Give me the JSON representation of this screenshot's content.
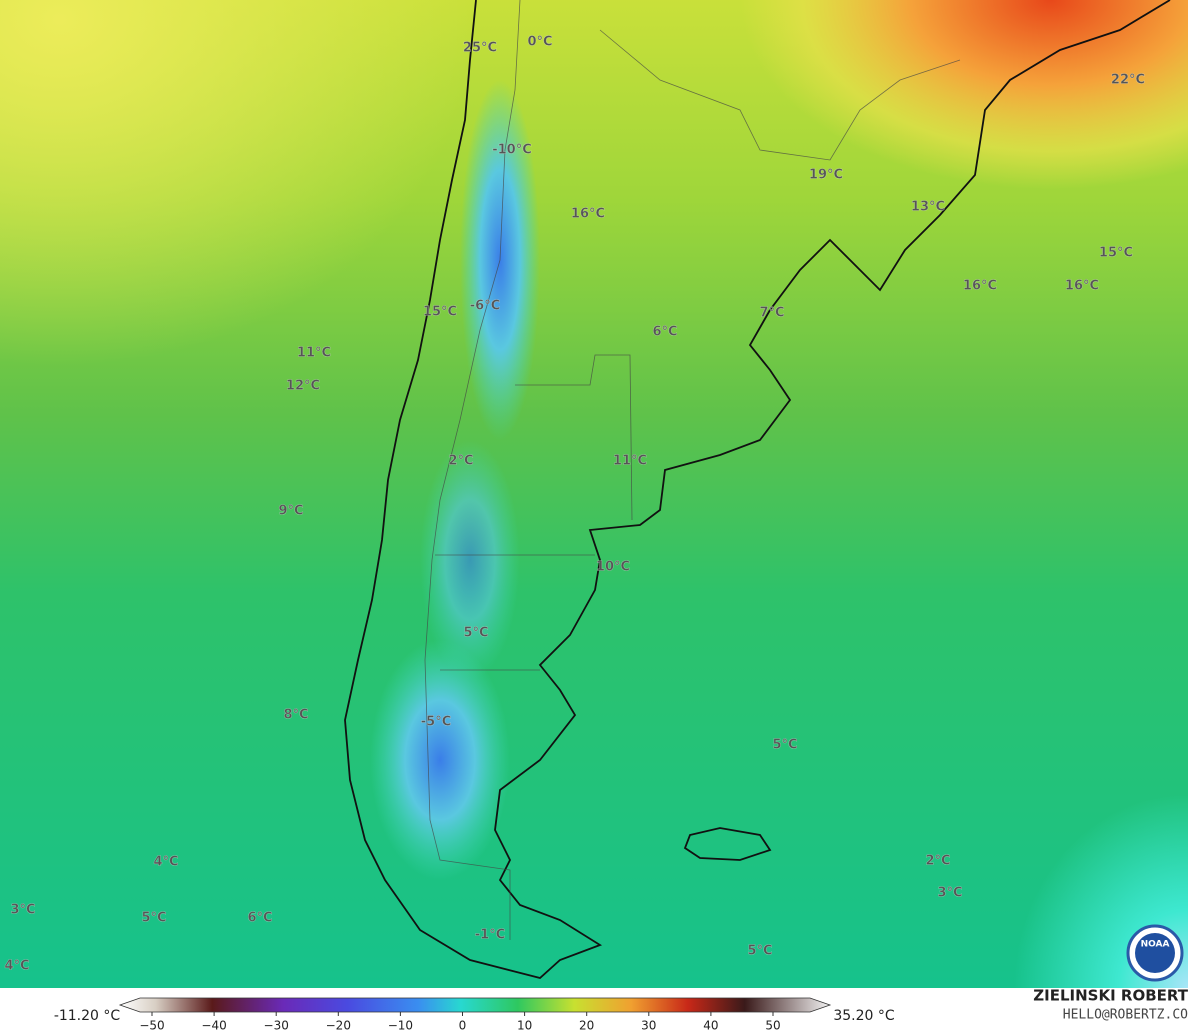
{
  "map": {
    "labels": [
      "25°C",
      "0°C",
      "-10°C",
      "16°C",
      "19°C",
      "22°C",
      "13°C",
      "15°C",
      "16°C",
      "16°C",
      "7°C",
      "6°C",
      "15°C",
      "-6°C",
      "11°C",
      "12°C",
      "2°C",
      "11°C",
      "9°C",
      "10°C",
      "5°C",
      "8°C",
      "-5°C",
      "5°C",
      "4°C",
      "2°C",
      "3°C",
      "3°C",
      "5°C",
      "6°C",
      "-1°C",
      "5°C",
      "4°C"
    ]
  },
  "colorbar": {
    "min_label": "-11.20 °C",
    "max_label": "35.20 °C",
    "ticks": [
      {
        "value": -50,
        "label": "−50"
      },
      {
        "value": -40,
        "label": "−40"
      },
      {
        "value": -30,
        "label": "−30"
      },
      {
        "value": -20,
        "label": "−20"
      },
      {
        "value": -10,
        "label": "−10"
      },
      0,
      10,
      20,
      30,
      40,
      50
    ]
  },
  "credit": {
    "name": "ZIELINSKI ROBERT",
    "email": "HELLO@ROBERTZ.CO"
  },
  "logo": "NOAA"
}
